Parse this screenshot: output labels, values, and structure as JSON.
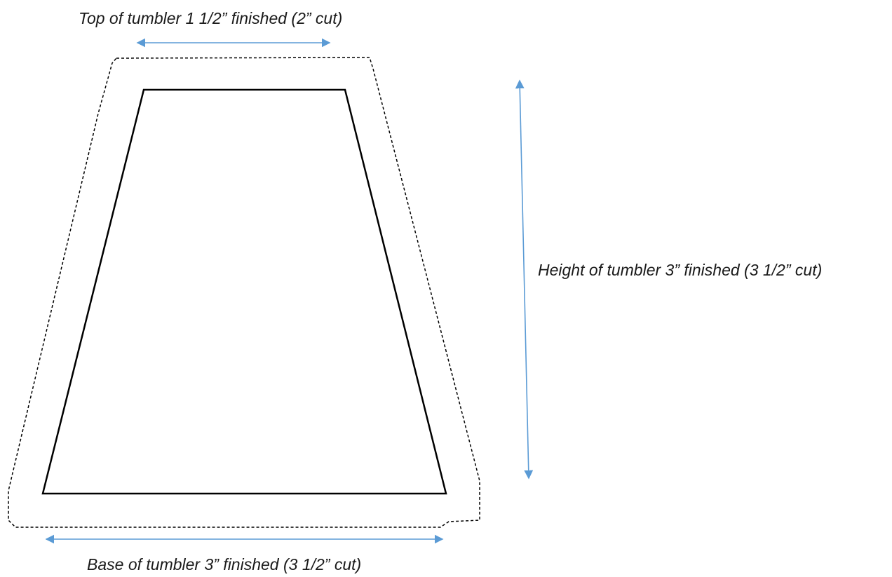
{
  "diagram": {
    "labels": {
      "top": "Top of tumbler 1 1/2” finished (2” cut)",
      "height": "Height of tumbler 3” finished (3 1/2” cut)",
      "base": "Base of tumbler 3” finished (3 1/2” cut)"
    },
    "colors": {
      "outline": "#000000",
      "arrow": "#5b9bd5",
      "text": "#1a1a1a"
    }
  }
}
